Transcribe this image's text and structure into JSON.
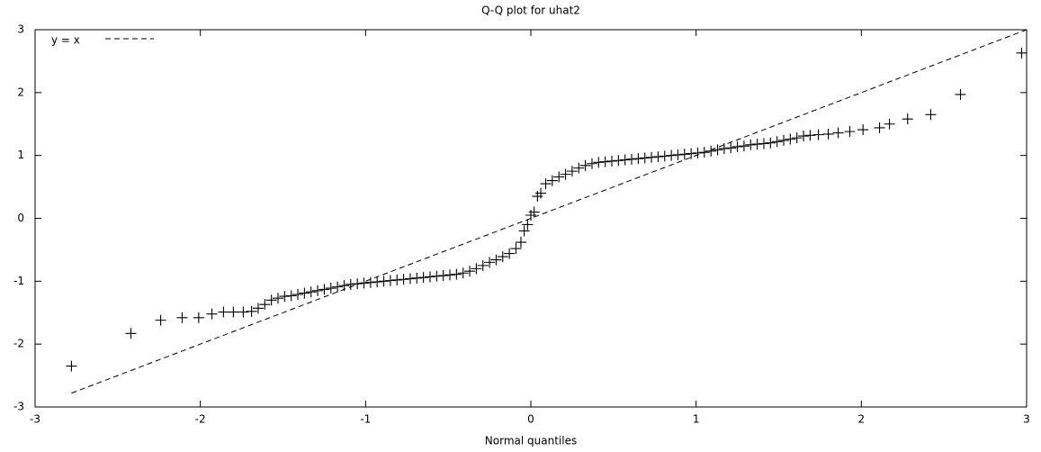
{
  "chart_data": {
    "type": "scatter",
    "title": "Q-Q plot for uhat2",
    "x_label": "Normal quantiles",
    "x": [
      -2.78,
      -2.42,
      -2.24,
      -2.11,
      -2.01,
      -1.93,
      -1.86,
      -1.8,
      -1.74,
      -1.69,
      -1.65,
      -1.61,
      -1.57,
      -1.53,
      -1.49,
      -1.45,
      -1.41,
      -1.37,
      -1.33,
      -1.29,
      -1.25,
      -1.21,
      -1.17,
      -1.13,
      -1.09,
      -1.05,
      -1.01,
      -0.97,
      -0.93,
      -0.89,
      -0.85,
      -0.81,
      -0.77,
      -0.73,
      -0.69,
      -0.65,
      -0.61,
      -0.57,
      -0.53,
      -0.49,
      -0.45,
      -0.41,
      -0.37,
      -0.33,
      -0.29,
      -0.25,
      -0.21,
      -0.17,
      -0.13,
      -0.09,
      -0.06,
      -0.04,
      -0.02,
      0,
      0.02,
      0.04,
      0.06,
      0.09,
      0.13,
      0.17,
      0.21,
      0.25,
      0.29,
      0.33,
      0.37,
      0.41,
      0.45,
      0.49,
      0.53,
      0.57,
      0.61,
      0.65,
      0.69,
      0.73,
      0.77,
      0.81,
      0.85,
      0.89,
      0.93,
      0.97,
      1.01,
      1.05,
      1.09,
      1.13,
      1.17,
      1.21,
      1.25,
      1.29,
      1.33,
      1.37,
      1.41,
      1.45,
      1.49,
      1.53,
      1.57,
      1.61,
      1.65,
      1.69,
      1.74,
      1.8,
      1.86,
      1.93,
      2.01,
      2.11,
      2.17,
      2.28,
      2.42,
      2.6,
      2.97
    ],
    "values": [
      -2.35,
      -1.83,
      -1.62,
      -1.58,
      -1.58,
      -1.52,
      -1.49,
      -1.49,
      -1.49,
      -1.48,
      -1.43,
      -1.37,
      -1.3,
      -1.27,
      -1.24,
      -1.23,
      -1.21,
      -1.19,
      -1.17,
      -1.15,
      -1.13,
      -1.11,
      -1.09,
      -1.07,
      -1.05,
      -1.04,
      -1.03,
      -1.02,
      -1.01,
      -1.0,
      -0.99,
      -0.98,
      -0.97,
      -0.96,
      -0.95,
      -0.94,
      -0.93,
      -0.92,
      -0.91,
      -0.9,
      -0.89,
      -0.87,
      -0.84,
      -0.8,
      -0.75,
      -0.7,
      -0.66,
      -0.61,
      -0.56,
      -0.48,
      -0.38,
      -0.2,
      -0.1,
      0.05,
      0.1,
      0.35,
      0.4,
      0.55,
      0.6,
      0.66,
      0.7,
      0.75,
      0.8,
      0.84,
      0.87,
      0.89,
      0.9,
      0.91,
      0.92,
      0.93,
      0.94,
      0.95,
      0.96,
      0.97,
      0.98,
      0.99,
      1.0,
      1.01,
      1.02,
      1.03,
      1.04,
      1.05,
      1.07,
      1.09,
      1.11,
      1.12,
      1.14,
      1.15,
      1.17,
      1.18,
      1.19,
      1.2,
      1.22,
      1.24,
      1.26,
      1.28,
      1.31,
      1.32,
      1.33,
      1.34,
      1.36,
      1.38,
      1.41,
      1.44,
      1.5,
      1.58,
      1.65,
      1.97,
      2.63
    ],
    "color": "#000000",
    "reference_line": {
      "name": "y = x",
      "x": [
        -2.78,
        3
      ],
      "y": [
        -2.78,
        3
      ],
      "color": "#000000"
    },
    "legend": "upper left",
    "xlim": [
      -3,
      3
    ],
    "xticks": [
      -3,
      -2,
      -1,
      0,
      1,
      2,
      3
    ],
    "ylim": [
      -3,
      3
    ],
    "yticks": [
      -3,
      -2,
      -1,
      0,
      1,
      2,
      3
    ],
    "grid": false
  }
}
